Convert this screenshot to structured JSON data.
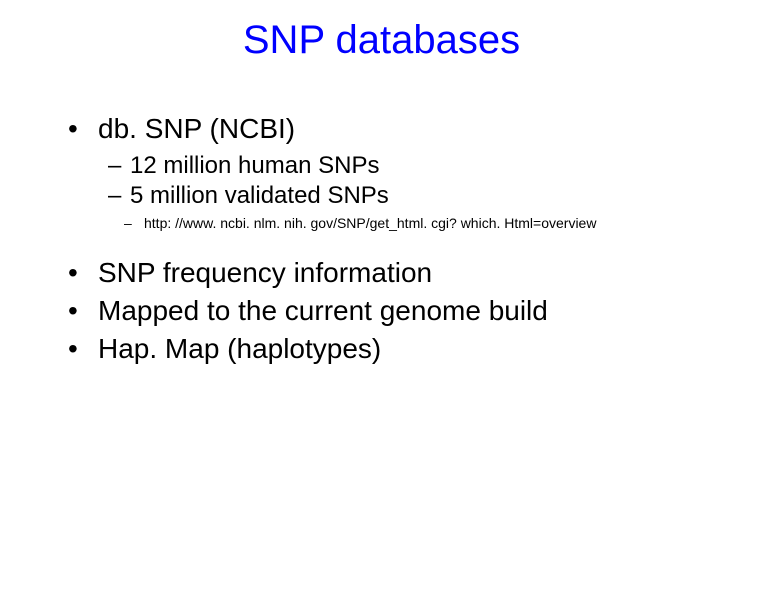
{
  "title": "SNP databases",
  "title_color": "#0000ff",
  "title_fontsize": 40,
  "text_color": "#000000",
  "background_color": "#ffffff",
  "bullet1_fontsize": 28,
  "bullet2_fontsize": 24,
  "bullet3_fontsize": 14,
  "bullets": {
    "b1": {
      "label": "db. SNP (NCBI)",
      "sub": {
        "s1": "12 million human SNPs",
        "s2": "5 million validated SNPs",
        "s3": "http: //www. ncbi. nlm. nih. gov/SNP/get_html. cgi? which. Html=overview"
      }
    },
    "b2": {
      "label": "SNP frequency information"
    },
    "b3": {
      "label": "Mapped to the current genome build"
    },
    "b4": {
      "label": "Hap. Map (haplotypes)"
    }
  },
  "bullet_marks": {
    "level1": "•",
    "level2": "–",
    "level3": "–"
  }
}
